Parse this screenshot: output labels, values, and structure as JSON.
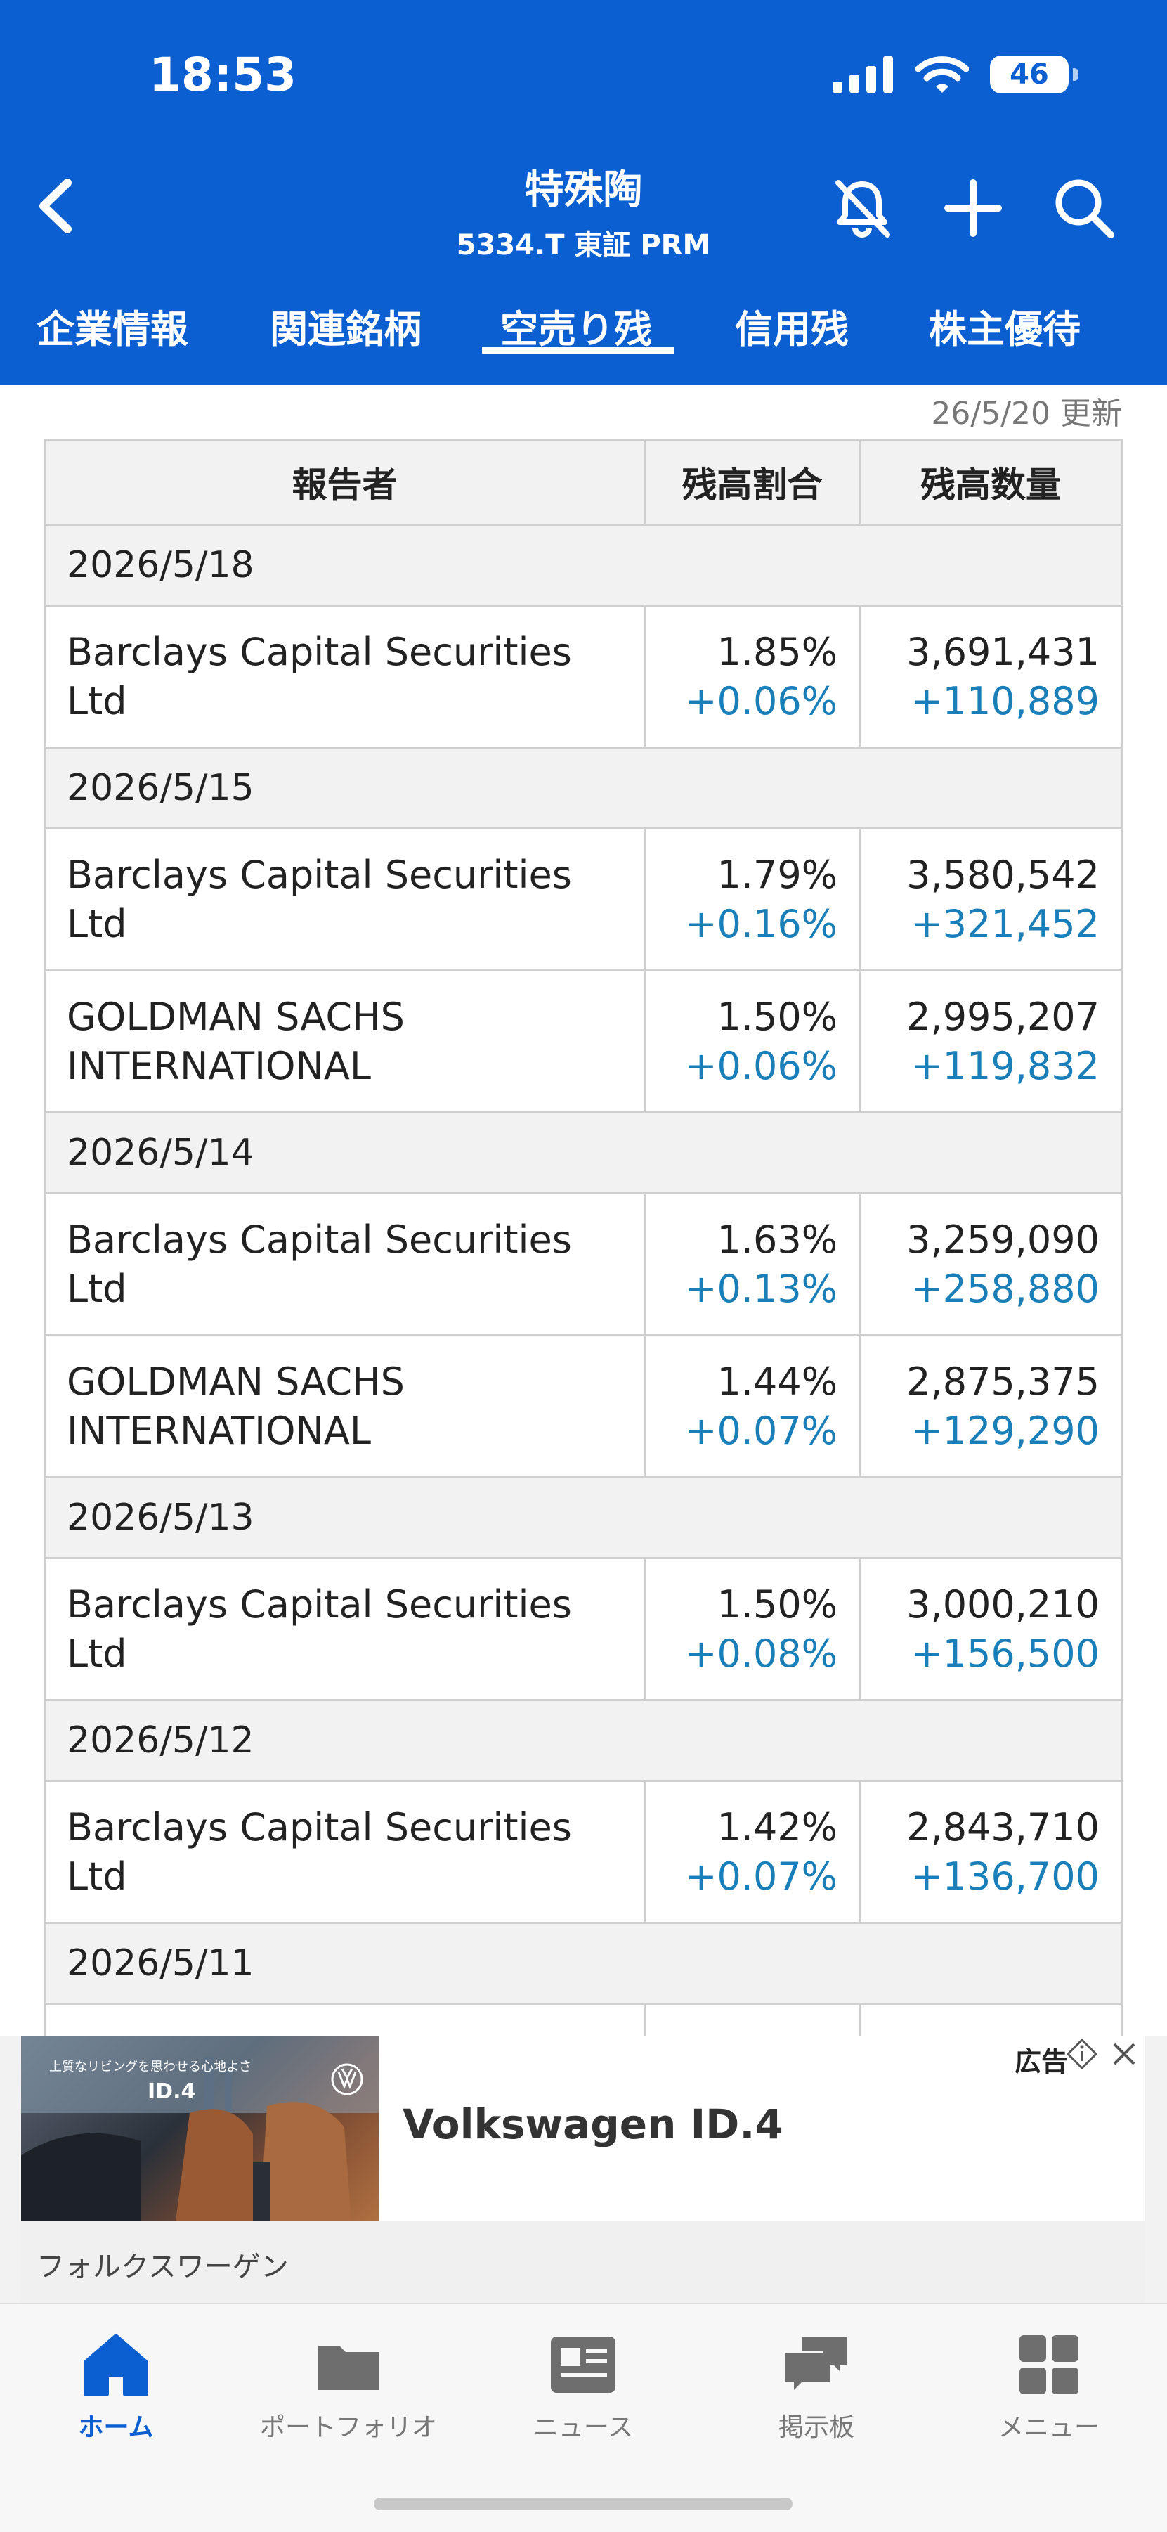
{
  "status_bar": {
    "time": "18:53",
    "battery": "46"
  },
  "header": {
    "title": "特殊陶",
    "subtitle": "5334.T 東証 PRM"
  },
  "tabs": [
    {
      "label": "企業情報"
    },
    {
      "label": "関連銘柄"
    },
    {
      "label": "空売り残",
      "active": true
    },
    {
      "label": "信用残"
    },
    {
      "label": "株主優待"
    }
  ],
  "update_label": "26/5/20 更新",
  "table": {
    "headers": [
      "報告者",
      "残高割合",
      "残高数量"
    ],
    "groups": [
      {
        "date": "2026/5/18",
        "rows": [
          {
            "name_line1": "Barclays Capital Securities",
            "name_line2": "Ltd",
            "ratio": "1.85%",
            "ratio_change": "+0.06%",
            "qty": "3,691,431",
            "qty_change": "+110,889"
          }
        ]
      },
      {
        "date": "2026/5/15",
        "rows": [
          {
            "name_line1": "Barclays Capital Securities",
            "name_line2": "Ltd",
            "ratio": "1.79%",
            "ratio_change": "+0.16%",
            "qty": "3,580,542",
            "qty_change": "+321,452"
          },
          {
            "name_line1": "GOLDMAN SACHS",
            "name_line2": "INTERNATIONAL",
            "ratio": "1.50%",
            "ratio_change": "+0.06%",
            "qty": "2,995,207",
            "qty_change": "+119,832"
          }
        ]
      },
      {
        "date": "2026/5/14",
        "rows": [
          {
            "name_line1": "Barclays Capital Securities",
            "name_line2": "Ltd",
            "ratio": "1.63%",
            "ratio_change": "+0.13%",
            "qty": "3,259,090",
            "qty_change": "+258,880"
          },
          {
            "name_line1": "GOLDMAN SACHS",
            "name_line2": "INTERNATIONAL",
            "ratio": "1.44%",
            "ratio_change": "+0.07%",
            "qty": "2,875,375",
            "qty_change": "+129,290"
          }
        ]
      },
      {
        "date": "2026/5/13",
        "rows": [
          {
            "name_line1": "Barclays Capital Securities",
            "name_line2": "Ltd",
            "ratio": "1.50%",
            "ratio_change": "+0.08%",
            "qty": "3,000,210",
            "qty_change": "+156,500"
          }
        ]
      },
      {
        "date": "2026/5/12",
        "rows": [
          {
            "name_line1": "Barclays Capital Securities",
            "name_line2": "Ltd",
            "ratio": "1.42%",
            "ratio_change": "+0.07%",
            "qty": "2,843,710",
            "qty_change": "+136,700"
          }
        ]
      },
      {
        "date": "2026/5/11",
        "rows": []
      }
    ]
  },
  "ad": {
    "label": "広告",
    "image_tagline": "上質なリビングを思わせる心地よさ",
    "image_model": "ID.4",
    "title": "Volkswagen ID.4",
    "brand": "フォルクスワーゲン"
  },
  "bottom_nav": [
    {
      "label": "ホーム",
      "icon": "home-icon",
      "active": true
    },
    {
      "label": "ポートフォリオ",
      "icon": "folder-icon"
    },
    {
      "label": "ニュース",
      "icon": "news-icon"
    },
    {
      "label": "掲示板",
      "icon": "chat-icon"
    },
    {
      "label": "メニュー",
      "icon": "menu-grid-icon"
    }
  ],
  "colors": {
    "brand_blue": "#0b5fd0",
    "change_blue": "#1a7fb8"
  }
}
